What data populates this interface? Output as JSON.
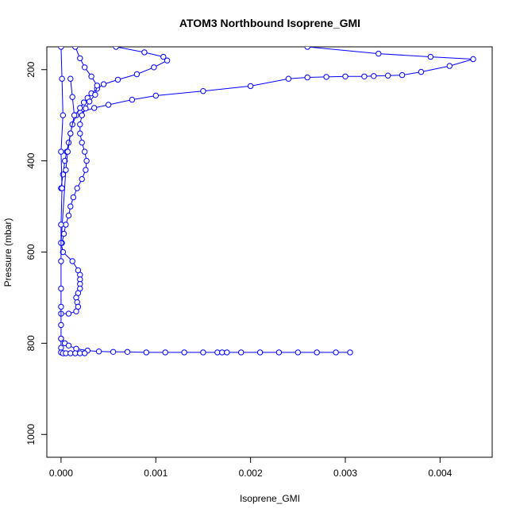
{
  "chart_data": {
    "type": "line",
    "title": "ATOM3 Northbound Isoprene_GMI",
    "xlabel": "Isoprene_GMI",
    "ylabel": "Pressure (mbar)",
    "xlim": [
      -0.00015,
      0.00455
    ],
    "ylim": [
      1050,
      150
    ],
    "y_reversed": true,
    "x_ticks": [
      0.0,
      0.001,
      0.002,
      0.003,
      0.004
    ],
    "x_tick_labels": [
      "0.000",
      "0.001",
      "0.002",
      "0.003",
      "0.004"
    ],
    "y_ticks": [
      200,
      400,
      600,
      800,
      1000
    ],
    "y_tick_labels": [
      "200",
      "400",
      "600",
      "800",
      "1000"
    ],
    "grid": false,
    "marker": "open-circle",
    "color": "#0000ff",
    "series": [
      {
        "x": [
          0.0026,
          0.00335,
          0.0039,
          0.00435,
          0.0041,
          0.0038,
          0.0036,
          0.00345,
          0.0033,
          0.0032,
          0.003,
          0.0028,
          0.0026,
          0.0024,
          0.002,
          0.0015,
          0.001,
          0.00075,
          0.0005,
          0.00035,
          0.0002
        ],
        "y": [
          150,
          165,
          172,
          177,
          192,
          205,
          212,
          213,
          214,
          215,
          215,
          216,
          217,
          220,
          236,
          247,
          257,
          266,
          277,
          284,
          294
        ]
      },
      {
        "x": [
          0.00058,
          0.00088,
          0.00108,
          0.00112,
          0.00098,
          0.0008,
          0.0006,
          0.00045,
          0.00038,
          0.00032,
          0.00028,
          0.00024,
          0.0002,
          0.00016,
          0.00012,
          0.0001,
          8e-05,
          6e-05,
          4e-05,
          2e-05,
          0.0
        ],
        "y": [
          150,
          162,
          172,
          180,
          195,
          210,
          222,
          232,
          242,
          252,
          262,
          272,
          284,
          300,
          320,
          340,
          360,
          380,
          400,
          430,
          460
        ]
      },
      {
        "x": [
          0.00015,
          0.0002,
          0.00025,
          0.00032,
          0.00038,
          0.00036,
          0.0003,
          0.00026,
          0.00022,
          0.0002,
          0.0002,
          0.00022,
          0.00025,
          0.00027,
          0.00026,
          0.00022,
          0.00017,
          0.00013,
          0.0001,
          8e-05,
          5e-05,
          3e-05,
          1e-05
        ],
        "y": [
          150,
          175,
          195,
          215,
          235,
          255,
          270,
          285,
          300,
          320,
          340,
          360,
          380,
          400,
          420,
          440,
          460,
          480,
          500,
          520,
          540,
          560,
          580
        ]
      },
      {
        "x": [
          0.0001,
          0.00012,
          0.00014,
          0.0001,
          7e-05,
          5e-05,
          0.0,
          2e-05,
          0.00012,
          0.00018,
          0.0002,
          0.0002,
          0.0002,
          0.0002,
          0.00018,
          0.00016,
          0.00017,
          0.00018,
          0.00016,
          8e-05,
          0.0
        ],
        "y": [
          220,
          260,
          300,
          340,
          380,
          420,
          580,
          600,
          620,
          640,
          650,
          660,
          670,
          680,
          690,
          700,
          710,
          720,
          730,
          735,
          735
        ]
      },
      {
        "x": [
          0.0,
          4e-05,
          8e-05,
          0.00016,
          0.00028,
          0.0004,
          0.00055,
          0.0007,
          0.0009,
          0.0011,
          0.0013,
          0.0015,
          0.00165,
          0.0017,
          0.00175,
          0.0019,
          0.0021,
          0.0023,
          0.0025,
          0.0027,
          0.0029,
          0.00305
        ],
        "y": [
          790,
          800,
          805,
          812,
          816,
          818,
          819,
          819,
          820,
          820,
          820,
          820,
          820,
          820,
          820,
          820,
          820,
          820,
          820,
          820,
          820,
          820
        ]
      },
      {
        "x": [
          0.0,
          1e-05,
          2e-05,
          0.0,
          1e-05,
          0.0,
          0.0,
          0.0,
          0.0,
          0.0,
          0.0,
          0.0,
          0.0
        ],
        "y": [
          150,
          220,
          300,
          380,
          460,
          540,
          620,
          680,
          720,
          760,
          790,
          810,
          820
        ]
      },
      {
        "x": [
          2e-05,
          5e-05,
          0.0001,
          0.00015,
          0.0002,
          0.00025
        ],
        "y": [
          822,
          822,
          822,
          822,
          822,
          822
        ]
      }
    ]
  }
}
